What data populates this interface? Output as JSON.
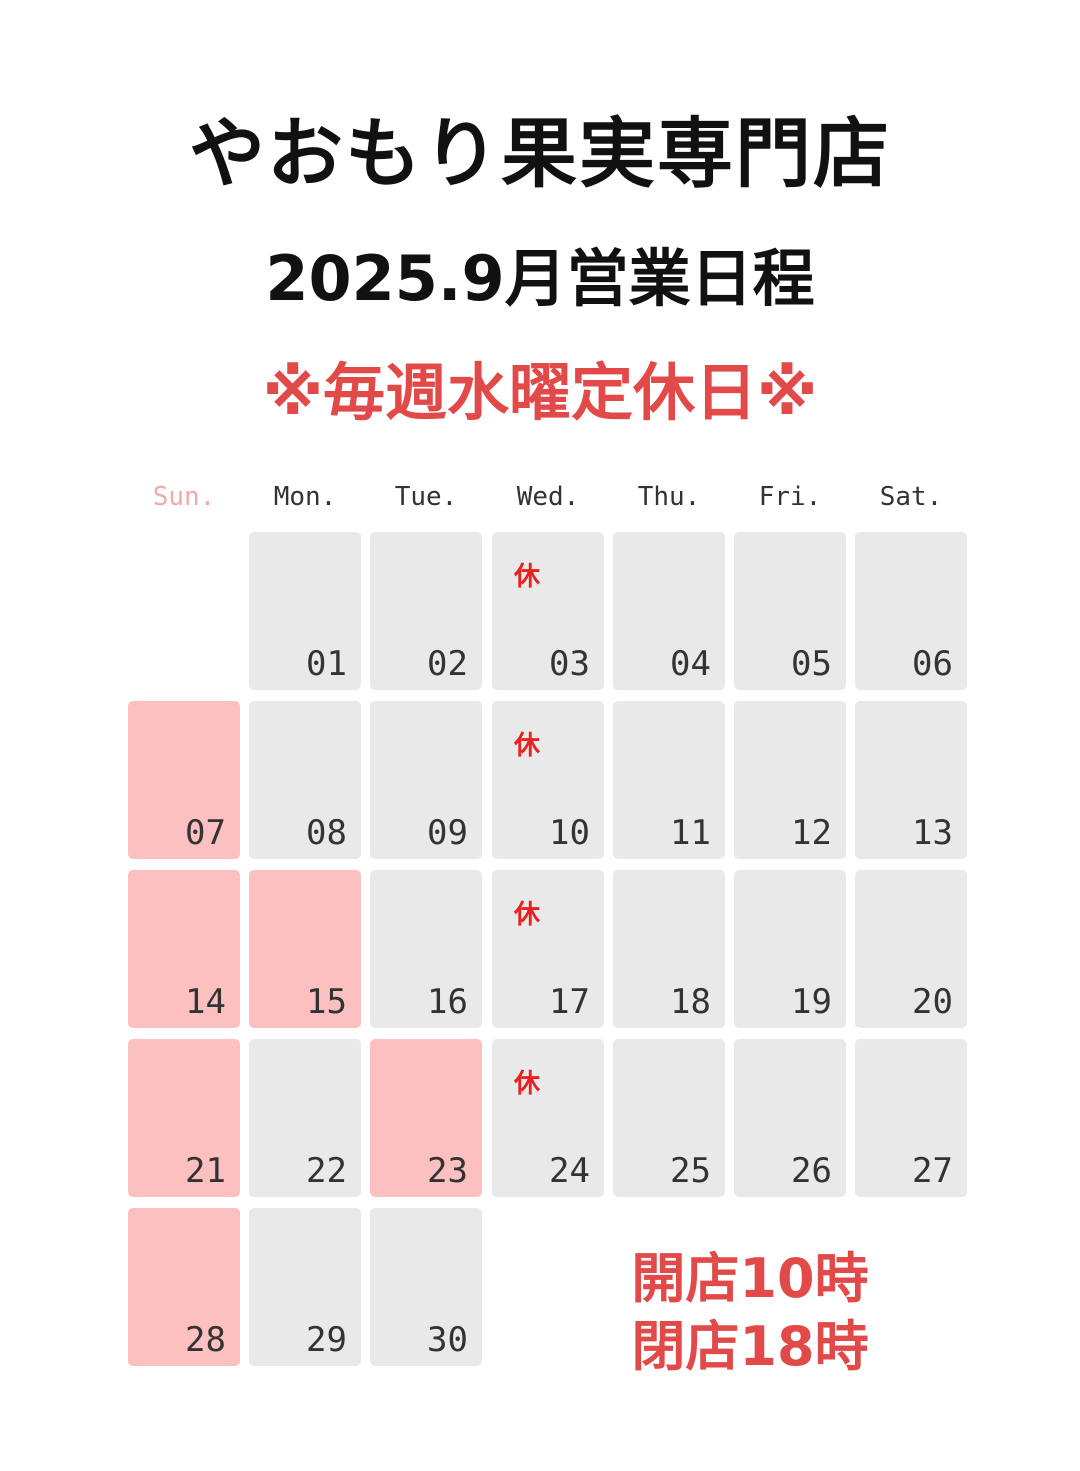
{
  "header": {
    "shop_name": "やおもり果実専門店",
    "schedule_title": "2025.9月営業日程",
    "notice": "※毎週水曜定休日※"
  },
  "weekdays": [
    "Sun.",
    "Mon.",
    "Tue.",
    "Wed.",
    "Thu.",
    "Fri.",
    "Sat."
  ],
  "calendar": {
    "year": 2025,
    "month": 9,
    "first_weekday_index": 1,
    "closed_mark": "休",
    "days": [
      {
        "day": "01",
        "closed": false,
        "highlight": false
      },
      {
        "day": "02",
        "closed": false,
        "highlight": false
      },
      {
        "day": "03",
        "closed": true,
        "highlight": false
      },
      {
        "day": "04",
        "closed": false,
        "highlight": false
      },
      {
        "day": "05",
        "closed": false,
        "highlight": false
      },
      {
        "day": "06",
        "closed": false,
        "highlight": false
      },
      {
        "day": "07",
        "closed": false,
        "highlight": true
      },
      {
        "day": "08",
        "closed": false,
        "highlight": false
      },
      {
        "day": "09",
        "closed": false,
        "highlight": false
      },
      {
        "day": "10",
        "closed": true,
        "highlight": false
      },
      {
        "day": "11",
        "closed": false,
        "highlight": false
      },
      {
        "day": "12",
        "closed": false,
        "highlight": false
      },
      {
        "day": "13",
        "closed": false,
        "highlight": false
      },
      {
        "day": "14",
        "closed": false,
        "highlight": true
      },
      {
        "day": "15",
        "closed": false,
        "highlight": true
      },
      {
        "day": "16",
        "closed": false,
        "highlight": false
      },
      {
        "day": "17",
        "closed": true,
        "highlight": false
      },
      {
        "day": "18",
        "closed": false,
        "highlight": false
      },
      {
        "day": "19",
        "closed": false,
        "highlight": false
      },
      {
        "day": "20",
        "closed": false,
        "highlight": false
      },
      {
        "day": "21",
        "closed": false,
        "highlight": true
      },
      {
        "day": "22",
        "closed": false,
        "highlight": false
      },
      {
        "day": "23",
        "closed": false,
        "highlight": true
      },
      {
        "day": "24",
        "closed": true,
        "highlight": false
      },
      {
        "day": "25",
        "closed": false,
        "highlight": false
      },
      {
        "day": "26",
        "closed": false,
        "highlight": false
      },
      {
        "day": "27",
        "closed": false,
        "highlight": false
      },
      {
        "day": "28",
        "closed": false,
        "highlight": true
      },
      {
        "day": "29",
        "closed": false,
        "highlight": false
      },
      {
        "day": "30",
        "closed": false,
        "highlight": false
      }
    ]
  },
  "hours": {
    "open": "開店10時",
    "close": "閉店18時"
  },
  "colors": {
    "notice_red": "#e24a4a",
    "highlight_pink": "#fcc0c0",
    "cell_gray": "#e9e9e9",
    "closed_mark_red": "#e8201f",
    "sunday_label": "#f3a9a9"
  }
}
